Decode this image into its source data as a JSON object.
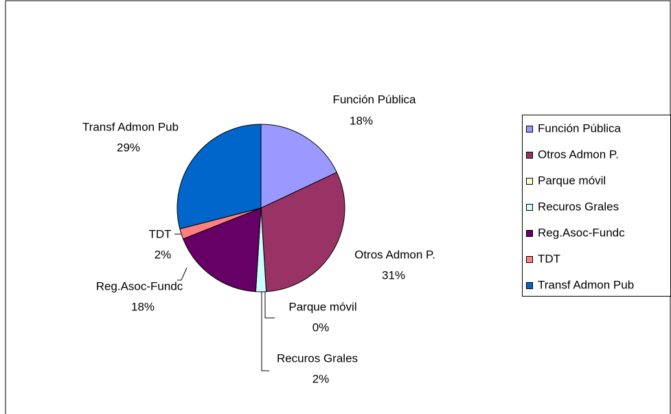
{
  "chart_data": {
    "type": "pie",
    "categories": [
      "Función Pública",
      "Otros Admon P.",
      "Parque móvil",
      "Recuros Grales",
      "Reg.Asoc-Fundc",
      "TDT",
      "Transf Admon Pub"
    ],
    "values": [
      18,
      31,
      0,
      2,
      18,
      2,
      29
    ],
    "value_labels": [
      "18%",
      "31%",
      "0%",
      "2%",
      "18%",
      "2%",
      "29%"
    ],
    "colors": [
      "#9999ff",
      "#993366",
      "#ffffcc",
      "#ccffff",
      "#660066",
      "#ff8080",
      "#0066cc"
    ],
    "legend": "right"
  }
}
